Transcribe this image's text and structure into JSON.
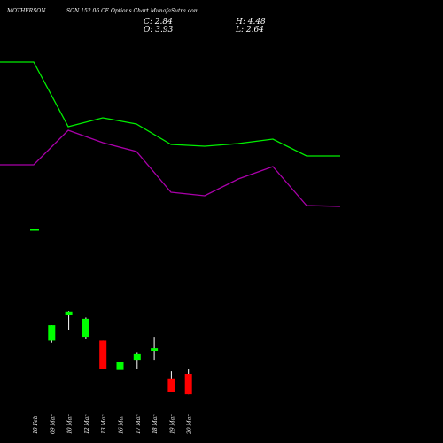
{
  "header": {
    "symbol": "MOTHERSON",
    "subtitle": "SON 152.06 CE Options Chart MunafaSutra.com",
    "close_label": "C: 2.84",
    "open_label": "O: 3.93",
    "high_label": "H: 4.48",
    "low_label": "L: 2.64"
  },
  "colors": {
    "background": "#000000",
    "up": "#00ff00",
    "down": "#ff0000",
    "line_upper": "#00ee00",
    "line_lower": "#aa00aa",
    "text": "#ffffff"
  },
  "chart_data": {
    "type": "candlestick",
    "categories": [
      "10 Feb",
      "09 Mar",
      "10 Mar",
      "12 Mar",
      "13 Mar",
      "16 Mar",
      "17 Mar",
      "18 Mar",
      "19 Mar",
      "20 Mar"
    ],
    "candles": [
      {
        "open": 3.55,
        "close": 3.55,
        "high": 3.55,
        "low": 3.55
      },
      {
        "open": 2.7,
        "close": 3.3,
        "high": 3.3,
        "low": 2.62
      },
      {
        "open": 3.7,
        "close": 3.83,
        "high": 3.85,
        "low": 3.1
      },
      {
        "open": 2.85,
        "close": 3.55,
        "high": 3.6,
        "low": 2.75
      },
      {
        "open": 2.7,
        "close": 1.6,
        "high": 2.7,
        "low": 1.6
      },
      {
        "open": 1.55,
        "close": 1.85,
        "high": 2.0,
        "low": 1.05
      },
      {
        "open": 1.95,
        "close": 2.2,
        "high": 2.25,
        "low": 1.6
      },
      {
        "open": 2.3,
        "close": 2.4,
        "high": 2.85,
        "low": 1.95
      },
      {
        "open": 1.2,
        "close": 0.7,
        "high": 1.5,
        "low": 0.7
      },
      {
        "open": 1.4,
        "close": 0.6,
        "high": 1.6,
        "low": 0.6
      }
    ],
    "upper_line": [
      70,
      70,
      143,
      133,
      140,
      163,
      165,
      162,
      157,
      176,
      176
    ],
    "lower_line": [
      186,
      186,
      147,
      161,
      171,
      217,
      221,
      202,
      188,
      232,
      233
    ]
  }
}
